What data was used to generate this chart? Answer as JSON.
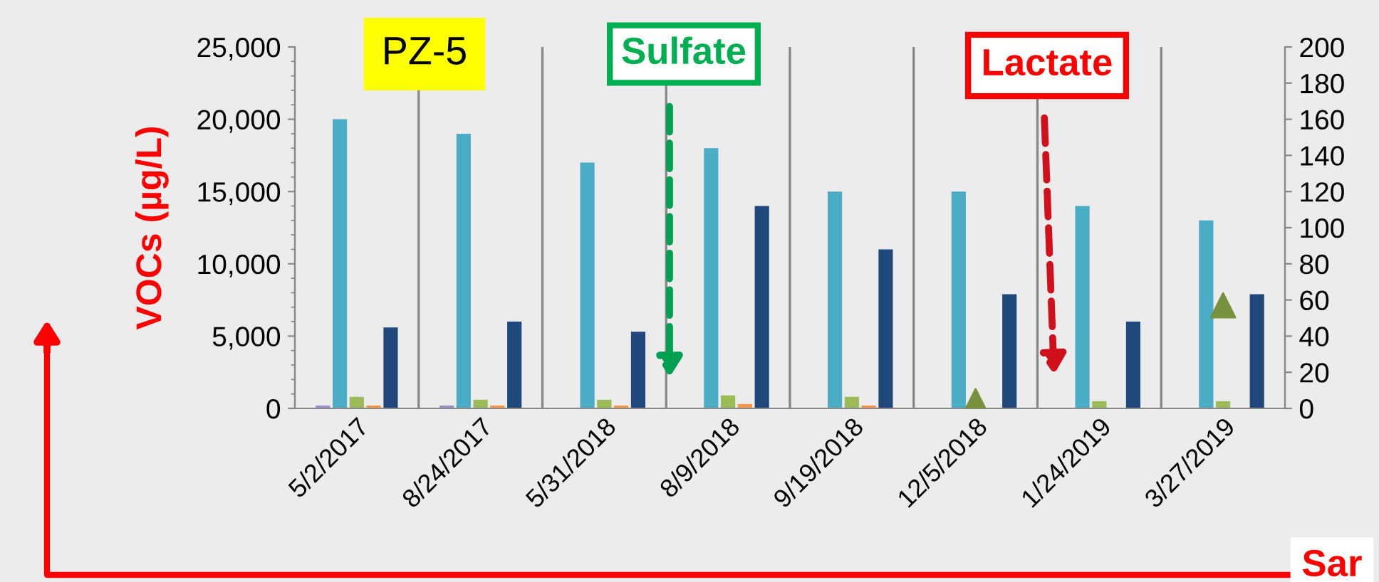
{
  "chart_data": {
    "type": "bar",
    "categories": [
      "5/2/2017",
      "8/24/2017",
      "5/31/2018",
      "8/9/2018",
      "9/19/2018",
      "12/5/2018",
      "1/24/2019",
      "3/27/2019"
    ],
    "ylabel": "VOCs (µg/L)",
    "series": [
      {
        "color": "#9b8fc9",
        "values": [
          200,
          200,
          0,
          0,
          0,
          0,
          0,
          0
        ]
      },
      {
        "color": "#4bacc6",
        "values": [
          20000,
          19000,
          17000,
          18000,
          15000,
          15000,
          14000,
          13000
        ]
      },
      {
        "color": "#9bbb59",
        "values": [
          800,
          600,
          600,
          900,
          800,
          null,
          500,
          500
        ]
      },
      {
        "color": "#f79646",
        "values": [
          200,
          200,
          200,
          300,
          200,
          null,
          null,
          null
        ]
      },
      {
        "color": "#1f497d",
        "values": [
          5600,
          6000,
          5300,
          14000,
          11000,
          7900,
          6000,
          7900
        ]
      },
      {
        "type": "scatter",
        "axis": "y2",
        "marker": "triangle",
        "color": "#76923c",
        "values": [
          null,
          null,
          null,
          null,
          null,
          4,
          null,
          57
        ]
      }
    ],
    "ylim": [
      0,
      25000
    ],
    "yticks": [
      0,
      {
        "value": 5000,
        "label": "5,000"
      },
      {
        "value": 10000,
        "label": "10,000"
      },
      {
        "value": 15000,
        "label": "15,000"
      },
      {
        "value": 20000,
        "label": "20,000"
      },
      {
        "value": 25000,
        "label": "25,000"
      }
    ],
    "y2lim": [
      0,
      200
    ],
    "y2ticks": [
      0,
      20,
      40,
      60,
      80,
      100,
      120,
      140,
      160,
      180,
      200
    ],
    "grid": "x",
    "annotations": [
      "PZ-5",
      "Sulfate",
      "Lactate",
      "Sar"
    ]
  }
}
